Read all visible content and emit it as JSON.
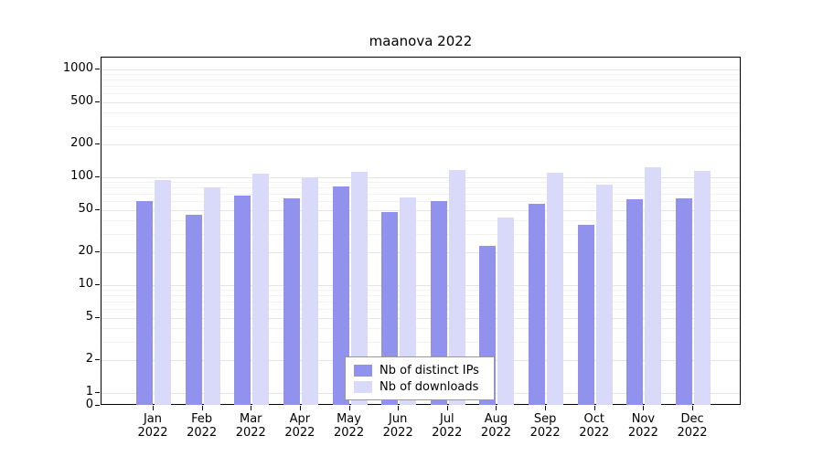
{
  "title": "maanova 2022",
  "chart_data": {
    "type": "bar",
    "title": "maanova 2022",
    "categories": [
      "Jan",
      "Feb",
      "Mar",
      "Apr",
      "May",
      "Jun",
      "Jul",
      "Aug",
      "Sep",
      "Oct",
      "Nov",
      "Dec"
    ],
    "year": "2022",
    "series": [
      {
        "name": "Nb of distinct IPs",
        "color": "#9191ee",
        "values": [
          60,
          45,
          68,
          64,
          82,
          48,
          60,
          23,
          57,
          36,
          63,
          64
        ]
      },
      {
        "name": "Nb of downloads",
        "color": "#d9d9fa",
        "values": [
          95,
          80,
          108,
          100,
          112,
          65,
          118,
          42,
          110,
          85,
          125,
          115
        ]
      }
    ],
    "y_ticks": [
      0,
      1,
      2,
      5,
      10,
      20,
      50,
      100,
      200,
      500,
      1000
    ],
    "y_scale": "log",
    "ylim": [
      0,
      1000
    ],
    "grid": true,
    "legend_position": "bottom-center-inside"
  },
  "colors": {
    "bar_ips": "#9191ee",
    "bar_downloads": "#d9d9fa",
    "grid_major": "#e4e4e4",
    "grid_minor": "#f2f2f2",
    "axis": "#000000",
    "legend_border": "#999999"
  }
}
